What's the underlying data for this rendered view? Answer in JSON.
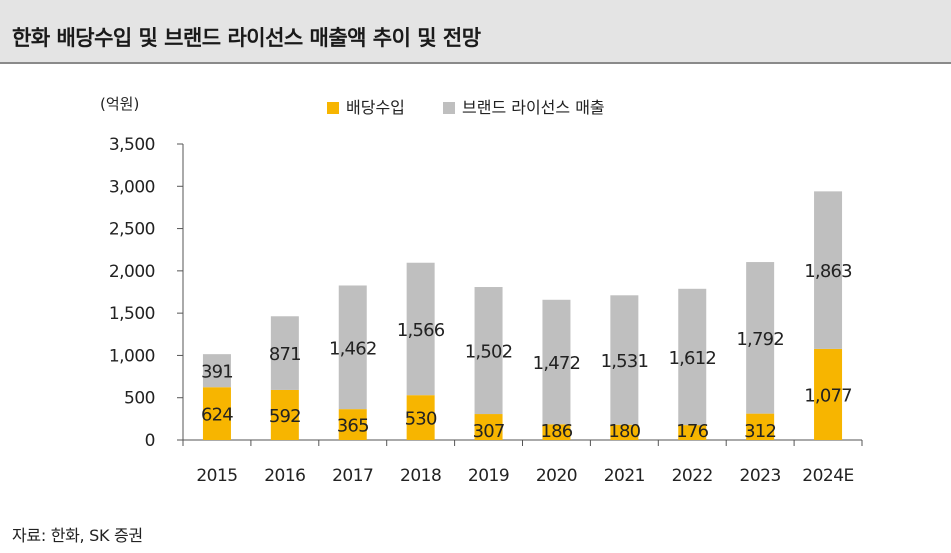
{
  "header": {
    "title": "한화 배당수입 및 브랜드 라이선스 매출액 추이 및 전망"
  },
  "footer": {
    "source": "자료: 한화, SK 증권"
  },
  "chart_data": {
    "type": "bar",
    "stacked": true,
    "unit_label": "(억원)",
    "categories": [
      "2015",
      "2016",
      "2017",
      "2018",
      "2019",
      "2020",
      "2021",
      "2022",
      "2023",
      "2024E"
    ],
    "series": [
      {
        "name": "배당수입",
        "color": "#f7b500",
        "values": [
          624,
          592,
          365,
          530,
          307,
          186,
          180,
          176,
          312,
          1077
        ]
      },
      {
        "name": "브랜드 라이선스 매출",
        "color": "#bfbfbf",
        "values": [
          391,
          871,
          1462,
          1566,
          1502,
          1472,
          1531,
          1612,
          1792,
          1863
        ]
      }
    ],
    "ylim": [
      0,
      3500
    ],
    "yticks": [
      0,
      500,
      1000,
      1500,
      2000,
      2500,
      3000,
      3500
    ],
    "ytick_labels": [
      "0",
      "500",
      "1,000",
      "1,500",
      "2,000",
      "2,500",
      "3,000",
      "3,500"
    ],
    "legend_position": "top-center",
    "grid": false
  }
}
